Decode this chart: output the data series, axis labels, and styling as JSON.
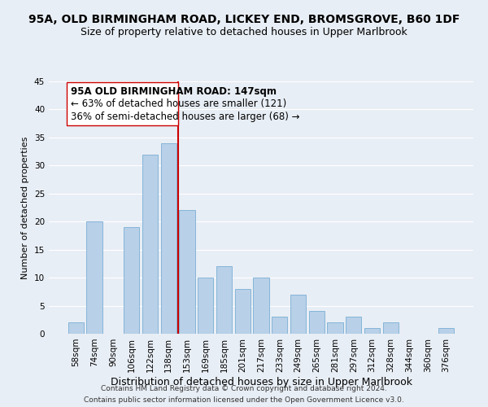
{
  "title": "95A, OLD BIRMINGHAM ROAD, LICKEY END, BROMSGROVE, B60 1DF",
  "subtitle": "Size of property relative to detached houses in Upper Marlbrook",
  "xlabel": "Distribution of detached houses by size in Upper Marlbrook",
  "ylabel": "Number of detached properties",
  "bar_color": "#b8d0e8",
  "bar_edge_color": "#7aafd4",
  "vline_color": "#cc0000",
  "categories": [
    "58sqm",
    "74sqm",
    "90sqm",
    "106sqm",
    "122sqm",
    "138sqm",
    "153sqm",
    "169sqm",
    "185sqm",
    "201sqm",
    "217sqm",
    "233sqm",
    "249sqm",
    "265sqm",
    "281sqm",
    "297sqm",
    "312sqm",
    "328sqm",
    "344sqm",
    "360sqm",
    "376sqm"
  ],
  "values": [
    2,
    20,
    0,
    19,
    32,
    34,
    22,
    10,
    12,
    8,
    10,
    3,
    7,
    4,
    2,
    3,
    1,
    2,
    0,
    0,
    1
  ],
  "ylim": [
    0,
    45
  ],
  "yticks": [
    0,
    5,
    10,
    15,
    20,
    25,
    30,
    35,
    40,
    45
  ],
  "vline_pos": 5.5,
  "annotation_title": "95A OLD BIRMINGHAM ROAD: 147sqm",
  "annotation_line1": "← 63% of detached houses are smaller (121)",
  "annotation_line2": "36% of semi-detached houses are larger (68) →",
  "footer1": "Contains HM Land Registry data © Crown copyright and database right 2024.",
  "footer2": "Contains public sector information licensed under the Open Government Licence v3.0.",
  "background_color": "#e8eef5",
  "grid_color": "white",
  "title_fontsize": 10,
  "subtitle_fontsize": 9,
  "xlabel_fontsize": 9,
  "ylabel_fontsize": 8,
  "tick_fontsize": 7.5,
  "annotation_fontsize": 8.5,
  "footer_fontsize": 6.5
}
